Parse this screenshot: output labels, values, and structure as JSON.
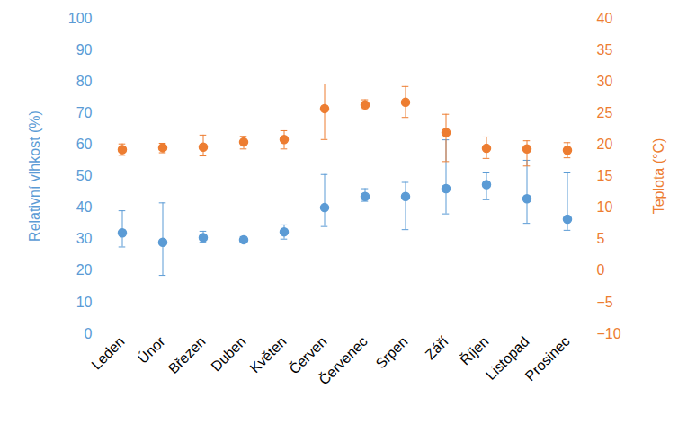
{
  "chart_data": {
    "type": "scatter",
    "categories": [
      "Leden",
      "Únor",
      "Březen",
      "Duben",
      "Květen",
      "Červen",
      "Červenec",
      "Srpen",
      "Září",
      "Říjen",
      "Listopad",
      "Prosinec"
    ],
    "ylabel": "Relativní vlhkost (%)",
    "y2label": "Teplota (°C)",
    "ylim": [
      0,
      100
    ],
    "yticks": [
      0,
      10,
      20,
      30,
      40,
      50,
      60,
      70,
      80,
      90,
      100
    ],
    "y2lim": [
      -10,
      40
    ],
    "y2ticks": [
      -10,
      -5,
      0,
      5,
      10,
      15,
      20,
      25,
      30,
      35,
      40
    ],
    "grid": false,
    "series": [
      {
        "color": "#5b9bd5",
        "marker": "circle",
        "axis": "y",
        "values": [
          32,
          29,
          30.5,
          29.8,
          32.3,
          40,
          43.5,
          43.5,
          46,
          47.3,
          42.8,
          36.3
        ],
        "error_low": [
          27.5,
          18.5,
          29,
          29,
          30,
          34,
          42,
          33,
          38,
          42.5,
          35,
          32.8
        ],
        "error_high": [
          39,
          41.5,
          32.5,
          30.8,
          34.5,
          50.5,
          46,
          48,
          61.5,
          51,
          55,
          51
        ]
      },
      {
        "color": "#ed7d31",
        "marker": "circle",
        "axis": "y2",
        "values": [
          19.2,
          19.5,
          19.6,
          20.4,
          20.8,
          25.7,
          26.3,
          26.7,
          21.9,
          19.4,
          19.3,
          19.1
        ],
        "error_low": [
          18.3,
          18.7,
          18.2,
          19.3,
          19.3,
          20.8,
          25.5,
          24.3,
          17.3,
          17.8,
          16.6,
          17.9
        ],
        "error_high": [
          20.1,
          20.2,
          21.5,
          21.3,
          22.2,
          29.6,
          27.1,
          29.2,
          24.8,
          21.2,
          20.6,
          20.3
        ]
      }
    ]
  }
}
